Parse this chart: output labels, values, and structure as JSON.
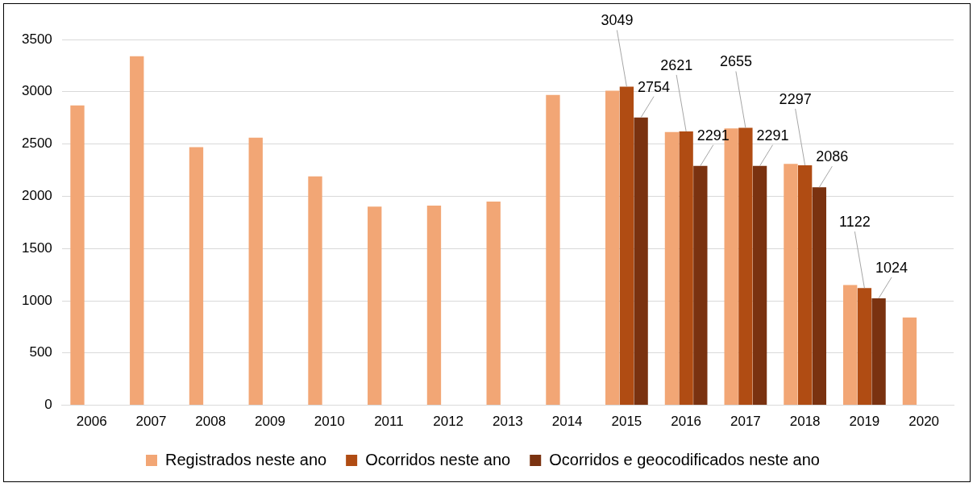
{
  "chart_data": {
    "type": "bar",
    "categories": [
      "2006",
      "2007",
      "2008",
      "2009",
      "2010",
      "2011",
      "2012",
      "2013",
      "2014",
      "2015",
      "2016",
      "2017",
      "2018",
      "2019",
      "2020"
    ],
    "series": [
      {
        "name": "Registrados neste ano",
        "color": "#f2a675",
        "values": [
          2870,
          3340,
          2470,
          2560,
          2190,
          1900,
          1910,
          1950,
          2970,
          3010,
          2615,
          2650,
          2310,
          1150,
          840
        ]
      },
      {
        "name": "Ocorridos neste ano",
        "color": "#b04c13",
        "values": [
          null,
          null,
          null,
          null,
          null,
          null,
          null,
          null,
          null,
          3049,
          2621,
          2655,
          2297,
          1122,
          null
        ],
        "value_labels": [
          null,
          null,
          null,
          null,
          null,
          null,
          null,
          null,
          null,
          "3049",
          "2621",
          "2655",
          "2297",
          "1122",
          null
        ]
      },
      {
        "name": "Ocorridos e geocodificados neste ano",
        "color": "#7a3210",
        "values": [
          null,
          null,
          null,
          null,
          null,
          null,
          null,
          null,
          null,
          2754,
          2291,
          2291,
          2086,
          1024,
          null
        ],
        "value_labels": [
          null,
          null,
          null,
          null,
          null,
          null,
          null,
          null,
          null,
          "2754",
          "2291",
          "2291",
          "2086",
          "1024",
          null
        ]
      }
    ],
    "ylim": [
      0,
      3500
    ],
    "yticks": [
      0,
      500,
      1000,
      1500,
      2000,
      2500,
      3000,
      3500
    ],
    "grid": "y",
    "legend": "bottom"
  }
}
